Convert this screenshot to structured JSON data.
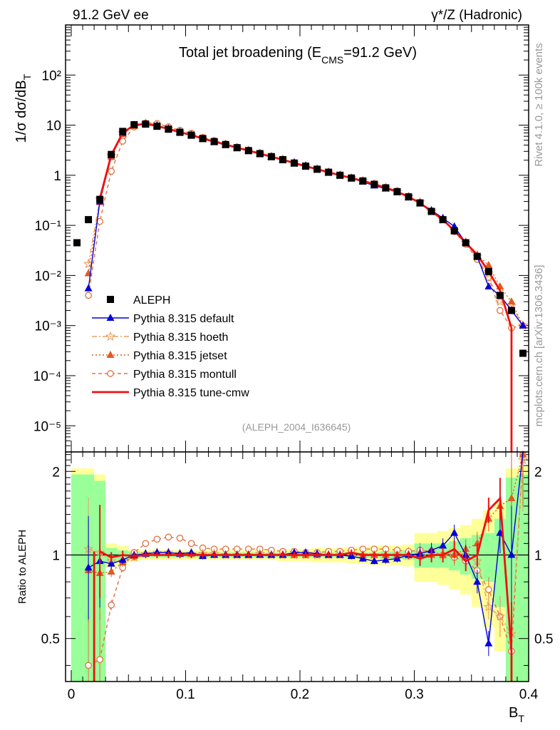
{
  "header": {
    "left": "91.2 GeV ee",
    "right": "γ*/Z (Hadronic)"
  },
  "side_texts": {
    "rivet": "Rivet 4.1.0, ≥ 100k events",
    "mcplots": "mcplots.cern.ch [arXiv:1306.3436]"
  },
  "colors": {
    "data": "#000000",
    "default": "#0000dd",
    "hoeth": "#e8a060",
    "jetset": "#e05a20",
    "montull": "#e07040",
    "cmw": "#ee1111",
    "band_inner": "#99ff99",
    "band_outer": "#ffff99"
  },
  "chart_data": [
    {
      "type": "scatter",
      "title": "Total jet broadening (E_CMS=91.2 GeV)",
      "title_main": "Total jet broadening (E",
      "title_sub": "CMS",
      "title_end": "=91.2 GeV)",
      "analysis_tag": "(ALEPH_2004_I636645)",
      "ylabel": "1/σ dσ/dB_T",
      "ylabel_main": "1/σ  dσ/dB",
      "ylabel_sub": "T",
      "yscale": "log",
      "ylim": [
        3e-06,
        1000
      ],
      "xlim": [
        -0.005,
        0.4
      ],
      "y_tick_labels": [
        "10⁻⁵",
        "10⁻⁴",
        "10⁻³",
        "10⁻²",
        "10⁻¹",
        "1",
        "10",
        "10²"
      ],
      "legend": {
        "position": "bottom-left",
        "entries": [
          {
            "key": "data",
            "label": "ALEPH"
          },
          {
            "key": "default",
            "label": "Pythia 8.315 default"
          },
          {
            "key": "hoeth",
            "label": "Pythia 8.315 hoeth"
          },
          {
            "key": "jetset",
            "label": "Pythia 8.315 jetset"
          },
          {
            "key": "montull",
            "label": "Pythia 8.315 montull"
          },
          {
            "key": "cmw",
            "label": "Pythia 8.315 tune-cmw"
          }
        ]
      },
      "x": [
        0.005,
        0.015,
        0.025,
        0.035,
        0.045,
        0.055,
        0.065,
        0.075,
        0.085,
        0.095,
        0.105,
        0.115,
        0.125,
        0.135,
        0.145,
        0.155,
        0.165,
        0.175,
        0.185,
        0.195,
        0.205,
        0.215,
        0.225,
        0.235,
        0.245,
        0.255,
        0.265,
        0.275,
        0.285,
        0.295,
        0.305,
        0.315,
        0.325,
        0.335,
        0.345,
        0.355,
        0.365,
        0.375,
        0.385,
        0.395
      ],
      "series": [
        {
          "key": "data",
          "name": "ALEPH",
          "values": [
            0.045,
            0.13,
            0.33,
            2.6,
            7.5,
            10.2,
            10.5,
            9.5,
            8.3,
            7.2,
            6.3,
            5.4,
            4.7,
            4.1,
            3.55,
            3.1,
            2.7,
            2.35,
            2.05,
            1.75,
            1.52,
            1.32,
            1.15,
            1.0,
            0.88,
            0.77,
            0.66,
            0.56,
            0.47,
            0.37,
            0.28,
            0.19,
            0.13,
            0.078,
            0.045,
            0.024,
            0.012,
            0.004,
            0.002,
            0.00028
          ]
        },
        {
          "key": "default",
          "name": "Pythia 8.315 default",
          "values": [
            null,
            0.0055,
            0.3,
            2.5,
            7.0,
            10.0,
            10.6,
            9.8,
            8.5,
            7.3,
            6.4,
            5.3,
            4.7,
            4.1,
            3.55,
            3.1,
            2.7,
            2.35,
            2.05,
            1.8,
            1.55,
            1.33,
            1.15,
            1.0,
            0.87,
            0.74,
            0.62,
            0.54,
            0.46,
            0.37,
            0.28,
            0.2,
            0.14,
            0.095,
            0.045,
            0.024,
            0.006,
            0.004,
            0.002,
            0.001
          ]
        },
        {
          "key": "hoeth",
          "name": "Pythia 8.315 hoeth",
          "values": [
            null,
            0.017,
            0.33,
            2.45,
            7.0,
            9.8,
            10.7,
            9.9,
            8.6,
            7.3,
            6.4,
            5.4,
            4.7,
            4.1,
            3.55,
            3.1,
            2.7,
            2.35,
            2.05,
            1.75,
            1.52,
            1.32,
            1.15,
            1.0,
            0.88,
            0.77,
            0.66,
            0.56,
            0.47,
            0.37,
            0.29,
            0.19,
            0.13,
            0.078,
            0.045,
            0.024,
            0.009,
            0.003,
            0.0025,
            0.001
          ]
        },
        {
          "key": "jetset",
          "name": "Pythia 8.315 jetset",
          "values": [
            null,
            0.011,
            0.29,
            2.3,
            6.6,
            9.6,
            10.6,
            9.9,
            8.6,
            7.3,
            6.4,
            5.4,
            4.7,
            4.1,
            3.55,
            3.1,
            2.7,
            2.35,
            2.05,
            1.75,
            1.52,
            1.32,
            1.15,
            1.0,
            0.88,
            0.77,
            0.66,
            0.56,
            0.47,
            0.37,
            0.28,
            0.19,
            0.13,
            0.078,
            0.047,
            0.026,
            0.016,
            0.006,
            0.003,
            0.001
          ]
        },
        {
          "key": "montull",
          "name": "Pythia 8.315 montull",
          "values": [
            null,
            0.004,
            0.12,
            1.2,
            4.8,
            9.2,
            11.0,
            10.8,
            9.3,
            7.9,
            6.9,
            5.7,
            4.9,
            4.25,
            3.65,
            3.2,
            2.78,
            2.4,
            2.08,
            1.78,
            1.53,
            1.33,
            1.16,
            1.01,
            0.89,
            0.79,
            0.68,
            0.58,
            0.49,
            0.38,
            0.29,
            0.19,
            0.13,
            0.075,
            0.042,
            0.021,
            0.009,
            0.002,
            0.0009,
            0.001
          ]
        },
        {
          "key": "cmw",
          "name": "Pythia 8.315 tune-cmw",
          "values": [
            null,
            null,
            0.34,
            2.55,
            7.0,
            10.1,
            10.6,
            9.6,
            8.4,
            7.25,
            6.35,
            5.4,
            4.7,
            4.1,
            3.55,
            3.1,
            2.7,
            2.35,
            2.05,
            1.75,
            1.52,
            1.32,
            1.15,
            1.0,
            0.88,
            0.77,
            0.66,
            0.56,
            0.47,
            0.37,
            0.28,
            0.19,
            0.13,
            0.078,
            0.045,
            0.026,
            0.012,
            0.005,
            0.0009,
            null
          ]
        }
      ]
    },
    {
      "type": "line",
      "ylabel": "Ratio to ALEPH",
      "xlabel": "B_T",
      "xlabel_main": "B",
      "xlabel_sub": "T",
      "ylim": [
        0.35,
        2.35
      ],
      "xlim": [
        -0.005,
        0.4
      ],
      "x_tick_labels": [
        "0",
        "0.1",
        "0.2",
        "0.3",
        "0.4"
      ],
      "y_tick_labels": [
        "0.5",
        "1",
        "2"
      ],
      "x": [
        0.005,
        0.015,
        0.025,
        0.035,
        0.045,
        0.055,
        0.065,
        0.075,
        0.085,
        0.095,
        0.105,
        0.115,
        0.125,
        0.135,
        0.145,
        0.155,
        0.165,
        0.175,
        0.185,
        0.195,
        0.205,
        0.215,
        0.225,
        0.235,
        0.245,
        0.255,
        0.265,
        0.275,
        0.285,
        0.295,
        0.305,
        0.315,
        0.325,
        0.335,
        0.345,
        0.355,
        0.365,
        0.375,
        0.385,
        0.395
      ],
      "band_inner_halfwidth": [
        0.95,
        0.95,
        0.85,
        0.06,
        0.04,
        0.03,
        0.02,
        0.02,
        0.02,
        0.02,
        0.02,
        0.02,
        0.02,
        0.02,
        0.02,
        0.02,
        0.02,
        0.02,
        0.02,
        0.02,
        0.02,
        0.02,
        0.02,
        0.02,
        0.02,
        0.02,
        0.02,
        0.03,
        0.03,
        0.04,
        0.1,
        0.1,
        0.1,
        0.12,
        0.15,
        0.18,
        0.2,
        0.35,
        0.9,
        0.95
      ],
      "band_outer_halfwidth": [
        1.05,
        1.05,
        0.95,
        0.1,
        0.08,
        0.05,
        0.04,
        0.04,
        0.04,
        0.04,
        0.04,
        0.04,
        0.04,
        0.04,
        0.04,
        0.04,
        0.04,
        0.04,
        0.05,
        0.05,
        0.05,
        0.06,
        0.06,
        0.06,
        0.07,
        0.07,
        0.08,
        0.08,
        0.08,
        0.09,
        0.2,
        0.2,
        0.22,
        0.25,
        0.28,
        0.35,
        0.45,
        0.55,
        1.05,
        1.1
      ],
      "series": [
        {
          "key": "default",
          "name": "Pythia 8.315 default",
          "values": [
            null,
            0.9,
            0.95,
            0.93,
            0.96,
            1.0,
            1.01,
            1.02,
            1.02,
            1.01,
            1.02,
            0.99,
            1.0,
            1.0,
            1.0,
            1.0,
            1.0,
            1.0,
            1.0,
            1.02,
            1.02,
            1.01,
            1.0,
            1.0,
            0.99,
            0.97,
            0.95,
            0.96,
            0.97,
            1.0,
            1.01,
            1.04,
            1.08,
            1.2,
            1.0,
            0.8,
            0.48,
            1.2,
            1.0,
            2.4
          ]
        },
        {
          "key": "hoeth",
          "name": "Pythia 8.315 hoeth",
          "values": [
            null,
            1.05,
            1.02,
            0.95,
            0.95,
            0.98,
            1.01,
            1.02,
            1.02,
            1.01,
            1.01,
            1.01,
            1.01,
            1.0,
            1.0,
            1.0,
            1.01,
            1.0,
            1.0,
            1.0,
            1.0,
            1.0,
            1.0,
            1.0,
            1.0,
            1.0,
            1.0,
            1.0,
            1.0,
            1.0,
            1.02,
            1.02,
            1.0,
            1.02,
            1.0,
            0.95,
            0.65,
            0.6,
            0.52,
            2.2
          ]
        },
        {
          "key": "jetset",
          "name": "Pythia 8.315 jetset",
          "values": [
            null,
            0.88,
            0.86,
            0.87,
            0.94,
            0.99,
            1.01,
            1.02,
            1.02,
            1.01,
            1.01,
            1.0,
            1.0,
            1.0,
            1.0,
            1.0,
            1.0,
            1.0,
            1.0,
            1.0,
            1.0,
            1.0,
            1.0,
            1.0,
            1.0,
            1.0,
            1.0,
            1.0,
            1.0,
            1.0,
            1.0,
            1.0,
            1.0,
            1.0,
            1.05,
            1.1,
            1.35,
            1.5,
            1.6,
            2.3
          ]
        },
        {
          "key": "montull",
          "name": "Pythia 8.315 montull",
          "values": [
            null,
            0.4,
            0.42,
            0.66,
            0.9,
            1.02,
            1.1,
            1.14,
            1.16,
            1.15,
            1.1,
            1.06,
            1.05,
            1.05,
            1.05,
            1.05,
            1.05,
            1.04,
            1.03,
            1.03,
            1.02,
            1.02,
            1.03,
            1.03,
            1.04,
            1.05,
            1.05,
            1.05,
            1.04,
            1.03,
            1.04,
            1.03,
            1.0,
            0.98,
            0.95,
            0.88,
            0.75,
            0.6,
            0.45,
            2.3
          ]
        },
        {
          "key": "cmw",
          "name": "Pythia 8.315 tune-cmw",
          "values": [
            null,
            null,
            1.03,
            0.98,
            1.0,
            0.99,
            1.0,
            1.0,
            1.0,
            1.0,
            1.0,
            1.0,
            1.0,
            1.0,
            1.0,
            1.0,
            1.0,
            1.0,
            1.0,
            1.0,
            1.0,
            1.0,
            1.0,
            1.0,
            1.02,
            1.0,
            1.0,
            1.0,
            1.0,
            1.0,
            0.97,
            1.0,
            1.0,
            1.05,
            0.95,
            1.0,
            1.45,
            1.6,
            0.45,
            null
          ]
        }
      ]
    }
  ]
}
